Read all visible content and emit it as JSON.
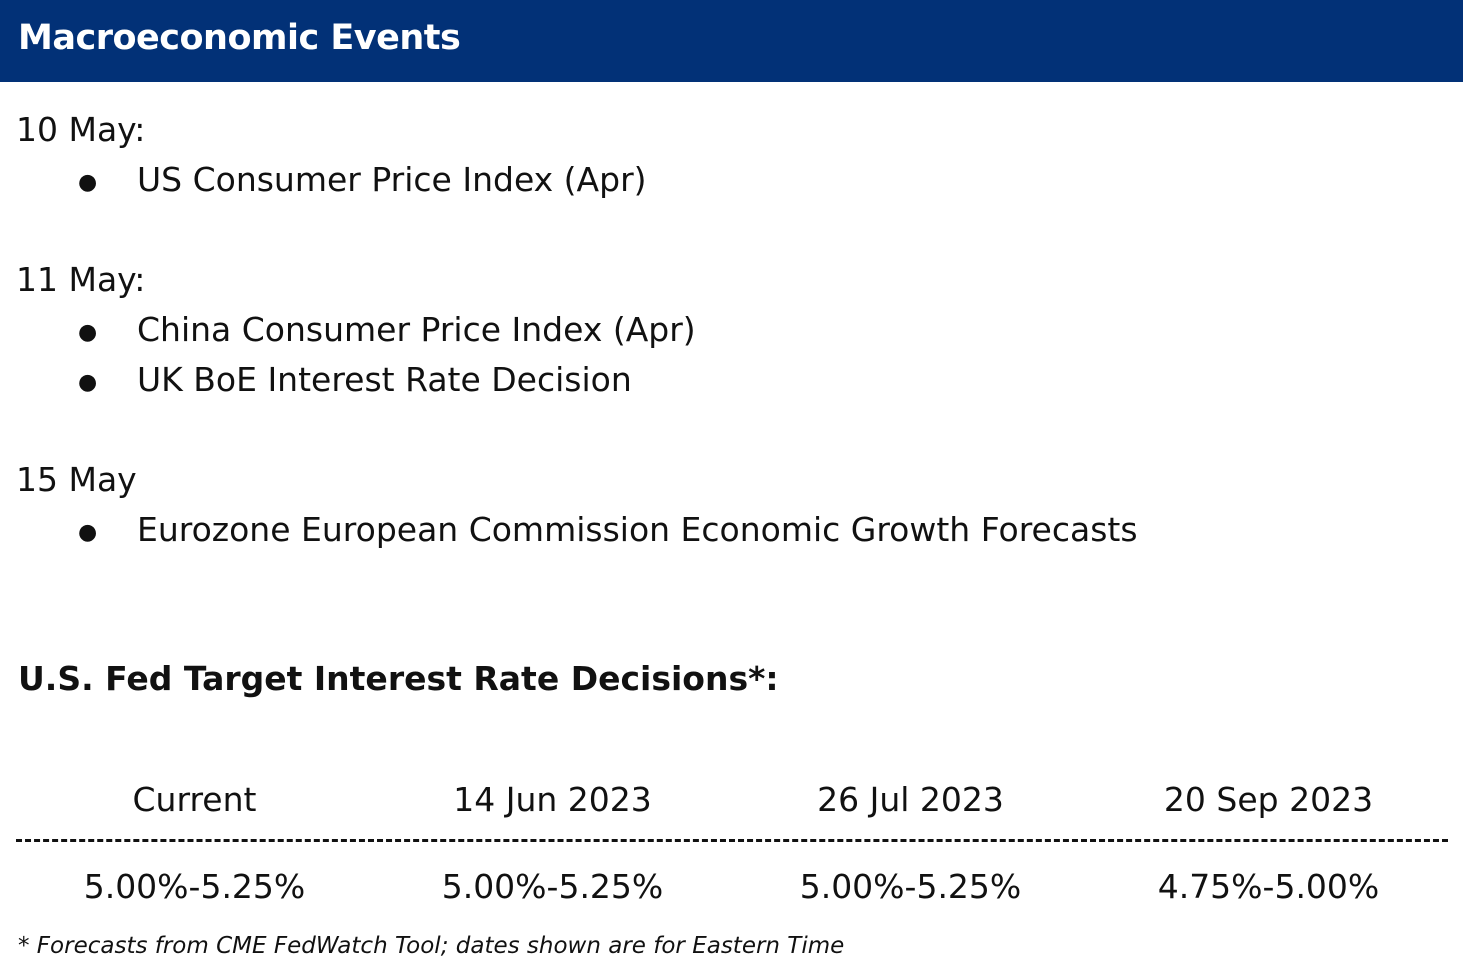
{
  "header": {
    "title": "Macroeconomic Events"
  },
  "events": [
    {
      "date": "10 May:",
      "items": [
        "US Consumer Price Index (Apr)"
      ]
    },
    {
      "date": "11 May:",
      "items": [
        "China Consumer Price Index (Apr)",
        "UK BoE Interest Rate Decision"
      ]
    },
    {
      "date": "15 May",
      "items": [
        "Eurozone European Commission Economic Growth Forecasts"
      ]
    }
  ],
  "bullet_glyph": "●",
  "fed": {
    "heading": "U.S. Fed Target Interest Rate Decisions*:",
    "columns": [
      {
        "date": "Current",
        "rate": "5.00%-5.25%"
      },
      {
        "date": "14 Jun 2023",
        "rate": "5.00%-5.25%"
      },
      {
        "date": "26 Jul 2023",
        "rate": "5.00%-5.25%"
      },
      {
        "date": "20 Sep 2023",
        "rate": "4.75%-5.00%"
      }
    ]
  },
  "footnote": "* Forecasts from CME FedWatch Tool; dates shown are for Eastern Time",
  "colors": {
    "header_bg": "#023177",
    "header_text": "#ffffff",
    "body_text": "#111111"
  }
}
